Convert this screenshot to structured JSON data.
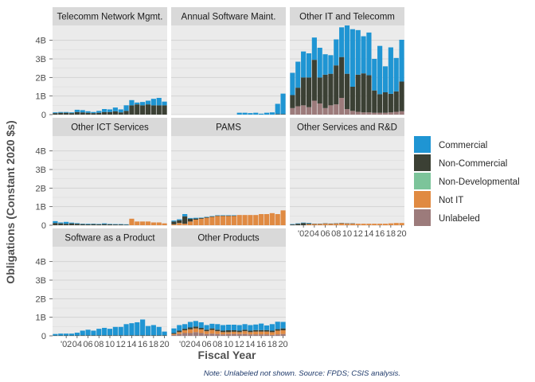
{
  "chart_data": {
    "type": "bar",
    "stacked": true,
    "ylabel": "Obligations (Constant 2020 $s)",
    "xlabel": "Fiscal Year",
    "caption": "Note: Unlabeled not shown. Source: FPDS; CSIS analysis.",
    "ylim": [
      0,
      4800000000
    ],
    "y_ticks": [
      0,
      1000000000,
      2000000000,
      3000000000,
      4000000000
    ],
    "y_tick_labels": [
      "0",
      "1B",
      "2B",
      "3B",
      "4B"
    ],
    "x_tick_labels": [
      "'02",
      "04",
      "06",
      "08",
      "10",
      "12",
      "14",
      "16",
      "18",
      "20"
    ],
    "years": [
      2000,
      2001,
      2002,
      2003,
      2004,
      2005,
      2006,
      2007,
      2008,
      2009,
      2010,
      2011,
      2012,
      2013,
      2014,
      2015,
      2016,
      2017,
      2018,
      2019,
      2020
    ],
    "grid": true,
    "legend_position": "right",
    "legend": [
      {
        "key": "unlabeled",
        "label": "Unlabeled",
        "color": "#9c7b7b"
      },
      {
        "key": "not_it",
        "label": "Not IT",
        "color": "#e08a42"
      },
      {
        "key": "non_developmental",
        "label": "Non-Developmental",
        "color": "#7cc49a"
      },
      {
        "key": "non_commercial",
        "label": "Non-Commercial",
        "color": "#3b4034"
      },
      {
        "key": "commercial",
        "label": "Commercial",
        "color": "#1f95d3"
      }
    ],
    "legend_order": [
      "commercial",
      "non_commercial",
      "non_developmental",
      "not_it",
      "unlabeled"
    ],
    "panels": [
      {
        "title": "Telecomm Network Mgmt.",
        "series": {
          "unlabeled": [
            0,
            0,
            0,
            0,
            0,
            0,
            0,
            0,
            0,
            0,
            0,
            0,
            0,
            0,
            0,
            0,
            0,
            0,
            0,
            0,
            0
          ],
          "not_it": [
            0,
            0,
            0,
            0,
            0,
            0,
            0,
            0,
            0,
            0,
            0,
            0,
            0,
            0,
            0,
            0,
            0,
            0,
            0,
            0,
            0
          ],
          "non_developmental": [
            0,
            0,
            0,
            0,
            0,
            0,
            0,
            0,
            0,
            0,
            0,
            0,
            0,
            0,
            0,
            0,
            0,
            0,
            0,
            0,
            0
          ],
          "non_commercial": [
            0.08,
            0.1,
            0.1,
            0.08,
            0.14,
            0.12,
            0.1,
            0.08,
            0.1,
            0.14,
            0.14,
            0.18,
            0.12,
            0.2,
            0.5,
            0.55,
            0.5,
            0.55,
            0.5,
            0.5,
            0.5
          ],
          "commercial": [
            0.04,
            0.04,
            0.04,
            0.04,
            0.12,
            0.12,
            0.08,
            0.06,
            0.1,
            0.16,
            0.14,
            0.2,
            0.16,
            0.3,
            0.28,
            0.1,
            0.18,
            0.2,
            0.35,
            0.4,
            0.2
          ]
        }
      },
      {
        "title": "Annual Software Maint.",
        "series": {
          "unlabeled": [
            0,
            0,
            0,
            0,
            0,
            0,
            0,
            0,
            0,
            0,
            0,
            0,
            0,
            0,
            0,
            0,
            0,
            0,
            0,
            0,
            0
          ],
          "not_it": [
            0,
            0,
            0,
            0,
            0,
            0,
            0,
            0,
            0,
            0,
            0,
            0,
            0,
            0,
            0,
            0,
            0,
            0,
            0,
            0,
            0
          ],
          "non_developmental": [
            0,
            0,
            0,
            0,
            0,
            0,
            0,
            0,
            0,
            0,
            0,
            0,
            0,
            0,
            0,
            0,
            0,
            0,
            0,
            0,
            0
          ],
          "non_commercial": [
            0,
            0,
            0,
            0,
            0,
            0,
            0,
            0,
            0,
            0,
            0,
            0,
            0,
            0,
            0,
            0,
            0,
            0,
            0,
            0.03,
            0.03
          ],
          "commercial": [
            0,
            0,
            0,
            0,
            0,
            0,
            0,
            0,
            0,
            0,
            0,
            0,
            0.1,
            0.1,
            0.08,
            0.1,
            0.05,
            0.1,
            0.12,
            0.55,
            1.1
          ]
        }
      },
      {
        "title": "Other IT and Telecomm",
        "series": {
          "unlabeled": [
            0.35,
            0.45,
            0.5,
            0.4,
            0.75,
            0.6,
            0.35,
            0.5,
            0.55,
            0.9,
            0.3,
            0.2,
            0.15,
            0.12,
            0.12,
            0.1,
            0.1,
            0.1,
            0.12,
            0.15,
            0.18
          ],
          "not_it": [
            0,
            0,
            0,
            0,
            0,
            0,
            0,
            0,
            0,
            0,
            0,
            0,
            0,
            0,
            0,
            0,
            0,
            0,
            0,
            0,
            0
          ],
          "non_developmental": [
            0,
            0,
            0,
            0,
            0,
            0,
            0,
            0,
            0,
            0,
            0,
            0,
            0,
            0,
            0,
            0,
            0,
            0,
            0,
            0,
            0
          ],
          "non_commercial": [
            0.7,
            1.0,
            1.5,
            1.6,
            2.2,
            1.4,
            1.8,
            1.7,
            2.1,
            2.2,
            1.9,
            1.3,
            2.0,
            2.1,
            2.0,
            1.2,
            1.0,
            1.1,
            1.0,
            1.1,
            1.6
          ],
          "commercial": [
            1.2,
            1.4,
            1.4,
            1.3,
            1.2,
            1.6,
            1.1,
            1.0,
            1.4,
            1.6,
            2.6,
            3.1,
            2.4,
            2.0,
            2.3,
            1.7,
            2.6,
            1.4,
            2.5,
            1.8,
            2.25
          ]
        }
      },
      {
        "title": "Other ICT Services",
        "series": {
          "unlabeled": [
            0,
            0,
            0,
            0,
            0,
            0,
            0,
            0,
            0,
            0,
            0,
            0,
            0,
            0,
            0,
            0,
            0,
            0,
            0,
            0,
            0
          ],
          "not_it": [
            0,
            0,
            0,
            0,
            0,
            0,
            0,
            0,
            0,
            0,
            0,
            0,
            0,
            0,
            0.35,
            0.2,
            0.2,
            0.2,
            0.15,
            0.15,
            0.1
          ],
          "non_developmental": [
            0,
            0,
            0,
            0,
            0,
            0,
            0,
            0,
            0,
            0,
            0,
            0,
            0,
            0,
            0,
            0,
            0,
            0,
            0,
            0,
            0
          ],
          "non_commercial": [
            0.12,
            0.1,
            0.08,
            0.1,
            0.08,
            0.06,
            0.05,
            0.06,
            0.05,
            0.06,
            0.05,
            0.04,
            0.04,
            0.03,
            0,
            0,
            0,
            0,
            0,
            0,
            0
          ],
          "commercial": [
            0.1,
            0.05,
            0.1,
            0.04,
            0.03,
            0.02,
            0.03,
            0.02,
            0.02,
            0.04,
            0.02,
            0.02,
            0.02,
            0.02,
            0,
            0,
            0,
            0,
            0,
            0,
            0
          ]
        }
      },
      {
        "title": "PAMS",
        "series": {
          "unlabeled": [
            0,
            0,
            0,
            0,
            0,
            0,
            0,
            0,
            0,
            0,
            0,
            0,
            0,
            0,
            0,
            0,
            0,
            0,
            0,
            0,
            0
          ],
          "not_it": [
            0.05,
            0.12,
            0.08,
            0.2,
            0.3,
            0.35,
            0.4,
            0.45,
            0.5,
            0.5,
            0.5,
            0.5,
            0.55,
            0.55,
            0.55,
            0.55,
            0.6,
            0.6,
            0.65,
            0.6,
            0.8
          ],
          "non_developmental": [
            0,
            0,
            0,
            0,
            0,
            0,
            0,
            0,
            0,
            0,
            0,
            0,
            0,
            0,
            0,
            0,
            0,
            0,
            0,
            0,
            0
          ],
          "non_commercial": [
            0.15,
            0.15,
            0.4,
            0.15,
            0.06,
            0.04,
            0.03,
            0.02,
            0.02,
            0.02,
            0.02,
            0.02,
            0,
            0,
            0,
            0,
            0,
            0,
            0,
            0,
            0
          ],
          "commercial": [
            0.05,
            0.05,
            0.12,
            0.04,
            0.04,
            0.02,
            0.02,
            0.02,
            0.02,
            0.02,
            0.02,
            0.02,
            0,
            0,
            0,
            0,
            0,
            0,
            0,
            0,
            0
          ]
        }
      },
      {
        "title": "Other Services and R&D",
        "series": {
          "unlabeled": [
            0,
            0,
            0,
            0,
            0,
            0,
            0,
            0,
            0,
            0,
            0,
            0,
            0,
            0,
            0,
            0,
            0,
            0,
            0,
            0,
            0
          ],
          "not_it": [
            0,
            0,
            0,
            0.05,
            0.06,
            0.06,
            0.08,
            0.07,
            0.08,
            0.1,
            0.08,
            0.08,
            0.08,
            0.08,
            0.08,
            0.08,
            0.08,
            0.08,
            0.1,
            0.12,
            0.12
          ],
          "non_developmental": [
            0,
            0,
            0,
            0,
            0,
            0,
            0,
            0,
            0,
            0,
            0,
            0,
            0,
            0,
            0,
            0,
            0,
            0,
            0,
            0,
            0
          ],
          "non_commercial": [
            0.04,
            0.08,
            0.12,
            0.05,
            0.02,
            0.02,
            0.02,
            0.02,
            0.02,
            0.02,
            0.02,
            0.02,
            0,
            0,
            0,
            0,
            0,
            0,
            0,
            0,
            0
          ],
          "commercial": [
            0.02,
            0.02,
            0.02,
            0.02,
            0,
            0,
            0,
            0,
            0,
            0,
            0,
            0,
            0,
            0,
            0,
            0,
            0,
            0,
            0,
            0,
            0
          ]
        }
      },
      {
        "title": "Software as a Product",
        "series": {
          "unlabeled": [
            0,
            0,
            0,
            0,
            0,
            0,
            0,
            0,
            0,
            0,
            0,
            0,
            0,
            0,
            0,
            0,
            0,
            0,
            0,
            0,
            0
          ],
          "not_it": [
            0,
            0,
            0,
            0,
            0,
            0,
            0,
            0,
            0,
            0,
            0,
            0,
            0,
            0,
            0,
            0,
            0,
            0,
            0,
            0,
            0
          ],
          "non_developmental": [
            0,
            0,
            0,
            0,
            0,
            0,
            0,
            0,
            0,
            0,
            0,
            0,
            0,
            0,
            0,
            0,
            0,
            0,
            0,
            0,
            0
          ],
          "non_commercial": [
            0.02,
            0.02,
            0.02,
            0.02,
            0.02,
            0.03,
            0.03,
            0.03,
            0.03,
            0.03,
            0.03,
            0.03,
            0.03,
            0.03,
            0.03,
            0.03,
            0.03,
            0.03,
            0.03,
            0.03,
            0.03
          ],
          "commercial": [
            0.08,
            0.1,
            0.1,
            0.1,
            0.15,
            0.25,
            0.3,
            0.25,
            0.35,
            0.4,
            0.35,
            0.45,
            0.45,
            0.6,
            0.65,
            0.7,
            0.85,
            0.5,
            0.55,
            0.45,
            0.2
          ]
        }
      },
      {
        "title": "Other Products",
        "series": {
          "unlabeled": [
            0.05,
            0.1,
            0.15,
            0.15,
            0.2,
            0.15,
            0.1,
            0.12,
            0.1,
            0.08,
            0.1,
            0.1,
            0.1,
            0.1,
            0.08,
            0.08,
            0.08,
            0.08,
            0.05,
            0.08,
            0.1
          ],
          "not_it": [
            0.05,
            0.1,
            0.15,
            0.2,
            0.2,
            0.2,
            0.15,
            0.2,
            0.15,
            0.12,
            0.1,
            0.12,
            0.1,
            0.15,
            0.12,
            0.15,
            0.15,
            0.15,
            0.15,
            0.2,
            0.2
          ],
          "non_developmental": [
            0,
            0,
            0,
            0,
            0,
            0,
            0,
            0,
            0,
            0,
            0,
            0,
            0,
            0,
            0,
            0,
            0,
            0,
            0,
            0,
            0
          ],
          "non_commercial": [
            0.05,
            0.08,
            0.08,
            0.1,
            0.1,
            0.08,
            0.08,
            0.08,
            0.08,
            0.08,
            0.1,
            0.08,
            0.08,
            0.08,
            0.08,
            0.08,
            0.08,
            0.08,
            0.08,
            0.08,
            0.1
          ],
          "commercial": [
            0.25,
            0.3,
            0.25,
            0.3,
            0.3,
            0.3,
            0.25,
            0.25,
            0.3,
            0.3,
            0.3,
            0.3,
            0.3,
            0.3,
            0.3,
            0.3,
            0.35,
            0.25,
            0.35,
            0.4,
            0.35
          ]
        }
      }
    ]
  }
}
